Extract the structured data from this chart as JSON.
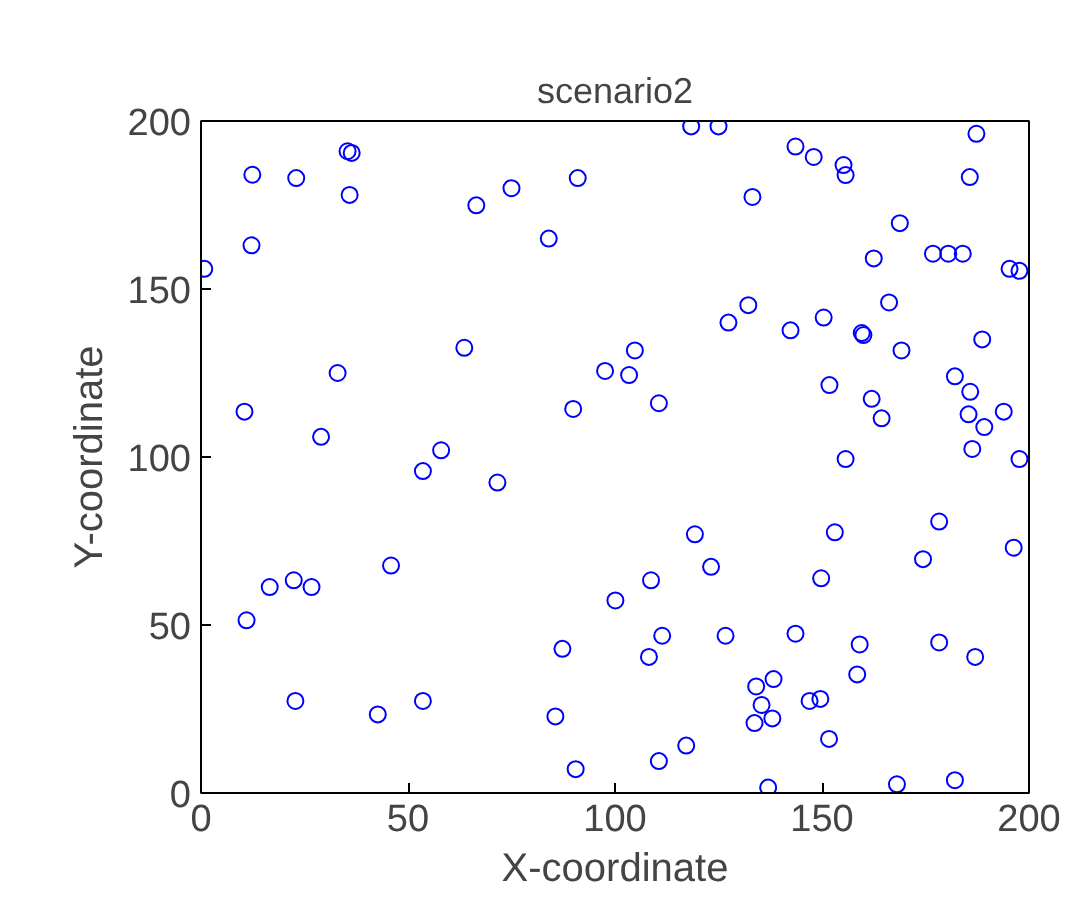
{
  "chart_data": {
    "type": "scatter",
    "title": "scenario2",
    "xlabel": "X-coordinate",
    "ylabel": "Y-coordinate",
    "xlim": [
      0,
      200
    ],
    "ylim": [
      0,
      200
    ],
    "xticks": [
      0,
      50,
      100,
      150,
      200
    ],
    "yticks": [
      0,
      50,
      100,
      150,
      200
    ],
    "grid": false,
    "marker": "circle",
    "series": [
      {
        "color": "#0000ff",
        "x": [
          0.8,
          12.4,
          12.2,
          23,
          35.4,
          36.4,
          35.9,
          66.5,
          75,
          91,
          84,
          63.6,
          33,
          97.6,
          10.5,
          29,
          58,
          89.9,
          118.4,
          125,
          143.6,
          148,
          155.2,
          155.7,
          187.3,
          185.7,
          133.2,
          168.8,
          162.5,
          176.8,
          180.5,
          184,
          195.3,
          197.7,
          132.2,
          127.4,
          142.4,
          150.4,
          159.6,
          160,
          166.2,
          188.7,
          169.2,
          104.8,
          103.4,
          110.6,
          151.8,
          162,
          164.4,
          182.1,
          185.8,
          185.4,
          189.2,
          193.9,
          186.3,
          155.7,
          197.7,
          53.6,
          71.6,
          45.9,
          16.6,
          22.4,
          26.7,
          11,
          100.1,
          87.3,
          22.8,
          42.7,
          53.6,
          85.6,
          90.5,
          119.3,
          123.2,
          108.7,
          153.1,
          149.8,
          178.3,
          174.4,
          196.3,
          111.4,
          108.2,
          126.7,
          143.6,
          159.1,
          158.5,
          178.3,
          187,
          138.3,
          134.1,
          135.4,
          133.7,
          138,
          147,
          149.6,
          151.7,
          117.2,
          110.6,
          137,
          168.1,
          182.1
        ],
        "values": [
          156,
          184,
          163,
          183,
          191,
          190.5,
          178,
          174.9,
          180,
          183,
          165,
          132.5,
          125,
          125.6,
          113.5,
          106,
          102,
          114.3,
          198.4,
          198.4,
          192.4,
          189.3,
          186.9,
          183.9,
          196.2,
          183.3,
          177.4,
          169.6,
          159.1,
          160.5,
          160.5,
          160.5,
          156,
          155.4,
          145.2,
          140,
          137.7,
          141.5,
          136.9,
          136.3,
          146,
          135,
          131.7,
          131.7,
          124.4,
          116,
          121.4,
          117.3,
          111.5,
          124,
          119.4,
          112.7,
          108.9,
          113.5,
          102.4,
          99.4,
          99.4,
          95.8,
          92.4,
          67.7,
          61.3,
          63.3,
          61.3,
          51.4,
          57.3,
          42.9,
          27.4,
          23.4,
          27.4,
          22.8,
          7.1,
          77,
          67.3,
          63.3,
          77.6,
          63.9,
          80.8,
          69.6,
          73,
          46.8,
          40.5,
          46.8,
          47.4,
          44.2,
          35.3,
          44.8,
          40.5,
          33.9,
          31.7,
          26.2,
          20.8,
          22.2,
          27.4,
          28,
          16.1,
          14.1,
          9.5,
          1.6,
          2.6,
          3.8
        ]
      }
    ]
  }
}
